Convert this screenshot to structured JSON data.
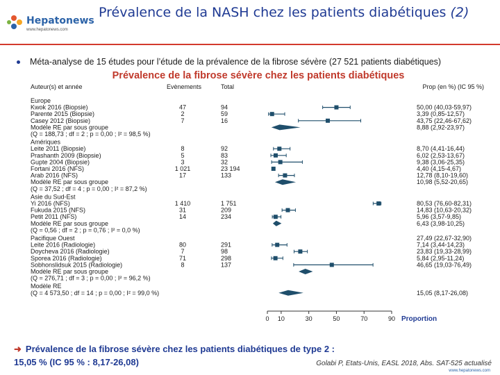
{
  "header": {
    "logo_text": "Hepatonews",
    "logo_url": "www.hepatonews.com",
    "title_main": "Prévalence de la NASH chez les patients diabétiques ",
    "title_suffix": "(2)"
  },
  "intro_bullet": "Méta-analyse de 15 études pour l’étude de la prévalence de la fibrose sévère (27 521 patients diabétiques)",
  "footer": {
    "line1": "Prévalence de la fibrose sévère chez les patients diabétiques de type 2 :",
    "line2": "15,05 % (IC 95 % : 8,17-26,08)",
    "citation": "Golabi P, Etats-Unis, EASL 2018, Abs. SAT-525 actualisé",
    "website": "www.hepatonews.com"
  },
  "colors": {
    "marker": "#1f4e6b",
    "title_blue": "#1f3a93",
    "accent_red": "#c0392b"
  },
  "chart_data": {
    "type": "forest",
    "title": "Prévalence de la fibrose sévère chez les patients diabétiques",
    "columns": {
      "study": "Auteur(s) et année",
      "events": "Evènements",
      "total": "Total",
      "prop": "Prop (en %) (IC 95 %)"
    },
    "xlabel": "Proportion",
    "xlim": [
      0,
      90
    ],
    "xticks": [
      0,
      10,
      30,
      50,
      70,
      90
    ],
    "rows": [
      {
        "kind": "group",
        "label": "Europe"
      },
      {
        "kind": "study",
        "label": "Kwok 2016 (Biopsie)",
        "events": "47",
        "total": "94",
        "prop": "50,00 (40,03-59,97)",
        "est": 50.0,
        "lo": 40.03,
        "hi": 59.97
      },
      {
        "kind": "study",
        "label": "Parente 2015 (Biopsie)",
        "events": "2",
        "total": "59",
        "prop": "3,39 (0,85-12,57)",
        "est": 3.39,
        "lo": 0.85,
        "hi": 12.57
      },
      {
        "kind": "study",
        "label": "Casey 2012 (Biopsie)",
        "events": "7",
        "total": "16",
        "prop": "43,75 (22,46-67,62)",
        "est": 43.75,
        "lo": 22.46,
        "hi": 67.62
      },
      {
        "kind": "summary",
        "label": "Modèle RE par sous groupe",
        "prop": "8,88 (2,92-23,97)",
        "est": 8.88,
        "lo": 2.92,
        "hi": 23.97
      },
      {
        "kind": "het",
        "label": "(Q = 188,73 ; df = 2 ; p = 0,00 ; I² = 98,5 %)"
      },
      {
        "kind": "gap"
      },
      {
        "kind": "group",
        "label": "Amériques"
      },
      {
        "kind": "study",
        "label": "Leite 2011 (Biopsie)",
        "events": "8",
        "total": "92",
        "prop": "8,70 (4,41-16,44)",
        "est": 8.7,
        "lo": 4.41,
        "hi": 16.44
      },
      {
        "kind": "study",
        "label": "Prashanth 2009 (Biopsie)",
        "events": "5",
        "total": "83",
        "prop": "6,02 (2,53-13,67)",
        "est": 6.02,
        "lo": 2.53,
        "hi": 13.67
      },
      {
        "kind": "study",
        "label": "Gupte 2004 (Biopsie)",
        "events": "3",
        "total": "32",
        "prop": "9,38 (3,06-25,35)",
        "est": 9.38,
        "lo": 3.06,
        "hi": 25.35
      },
      {
        "kind": "study",
        "label": "Fortani 2016 (NFS)",
        "events": "1 021",
        "total": "23 194",
        "prop": "4,40 (4,15-4,67)",
        "est": 4.4,
        "lo": 4.15,
        "hi": 4.67
      },
      {
        "kind": "study",
        "label": "Arab 2016 (NFS)",
        "events": "17",
        "total": "133",
        "prop": "12,78 (8,10-19,60)",
        "est": 12.78,
        "lo": 8.1,
        "hi": 19.6
      },
      {
        "kind": "summary",
        "label": "Modèle RE par sous groupe",
        "prop": "10,98 (5,52-20,65)",
        "est": 10.98,
        "lo": 5.52,
        "hi": 20.65
      },
      {
        "kind": "het",
        "label": "(Q = 37,52 ; df = 4 ; p = 0,00 ; I² = 87,2 %)"
      },
      {
        "kind": "gap"
      },
      {
        "kind": "group",
        "label": "Asie du Sud-Est"
      },
      {
        "kind": "study",
        "label": "Yi 2016 (NFS)",
        "events": "1 410",
        "total": "1 751",
        "prop": "80,53 (76,60-82,31)",
        "est": 80.53,
        "lo": 76.6,
        "hi": 82.31
      },
      {
        "kind": "study",
        "label": "Fukuda 2015 (NFS)",
        "events": "31",
        "total": "209",
        "prop": "14,83 (10,63-20,32)",
        "est": 14.83,
        "lo": 10.63,
        "hi": 20.32
      },
      {
        "kind": "study",
        "label": "Petit 2011 (NFS)",
        "events": "14",
        "total": "234",
        "prop": "5,96 (3,57-9,85)",
        "est": 5.96,
        "lo": 3.57,
        "hi": 9.85
      },
      {
        "kind": "summary",
        "label": "Modèle RE par sous groupe",
        "prop": "6,43 (3,98-10,25)",
        "est": 6.43,
        "lo": 3.98,
        "hi": 10.25
      },
      {
        "kind": "het",
        "label": "(Q = 0,56 ; df = 2 ; p = 0,76 ; I² = 0,0 %)"
      },
      {
        "kind": "gap"
      },
      {
        "kind": "group",
        "label": "Pacifique Ouest",
        "prop": "27,49 (22,67-32,90)"
      },
      {
        "kind": "study",
        "label": "Leite 2016 (Radiologie)",
        "events": "80",
        "total": "291",
        "prop": "7,14 (3,44-14,23)",
        "est": 7.14,
        "lo": 3.44,
        "hi": 14.23
      },
      {
        "kind": "study",
        "label": "Doycheva 2016 (Radiologie)",
        "events": "7",
        "total": "98",
        "prop": "23,83 (19,33-28,99)",
        "est": 23.83,
        "lo": 19.33,
        "hi": 28.99
      },
      {
        "kind": "study",
        "label": "Sporea 2016 (Radiologie)",
        "events": "71",
        "total": "298",
        "prop": "5,84 (2,95-11,24)",
        "est": 5.84,
        "lo": 2.95,
        "hi": 11.24
      },
      {
        "kind": "study",
        "label": "Sobhonslidsuk 2015 (Radiologie)",
        "events": "8",
        "total": "137",
        "prop": "46,65 (19,03-76,49)",
        "est": 46.65,
        "lo": 19.03,
        "hi": 76.49
      },
      {
        "kind": "summary",
        "label": "Modèle RE par sous groupe",
        "est": 27.49,
        "lo": 22.67,
        "hi": 32.9
      },
      {
        "kind": "het",
        "label": "(Q = 276,71 ; df = 3 ; p = 0,00 ; I² = 96,2 %)"
      },
      {
        "kind": "gap"
      },
      {
        "kind": "overall-label",
        "label": "Modèle RE"
      },
      {
        "kind": "overall",
        "label": "(Q = 4 573,50 ; df = 14 ; p = 0,00 ; I² = 99,0 %)",
        "prop": "15,05 (8,17-26,08)",
        "est": 15.05,
        "lo": 8.17,
        "hi": 26.08
      }
    ]
  }
}
